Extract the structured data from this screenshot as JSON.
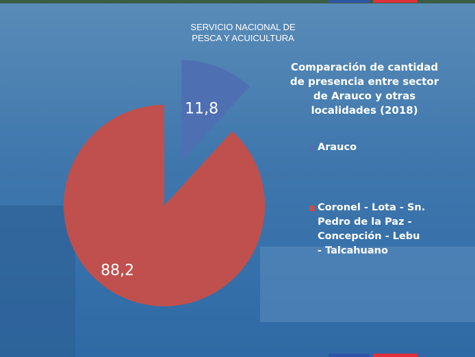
{
  "header": {
    "lines": [
      "SERVICIO NACIONAL DE",
      "PESCA Y ACUICULTURA"
    ]
  },
  "chart_data": {
    "type": "pie",
    "title": "Comparación de cantidad de presencia entre sector de Arauco y otras localidades (2018)",
    "categories": [
      "Arauco",
      "Coronel - Lota - Sn. Pedro de la Paz - Concepción - Lebu - Talcahuano"
    ],
    "values": [
      11.8,
      88.2
    ],
    "value_labels": [
      "11,8",
      "88,2"
    ],
    "colors": [
      "#4f6fb3",
      "#c0504d"
    ],
    "legend": "right"
  }
}
